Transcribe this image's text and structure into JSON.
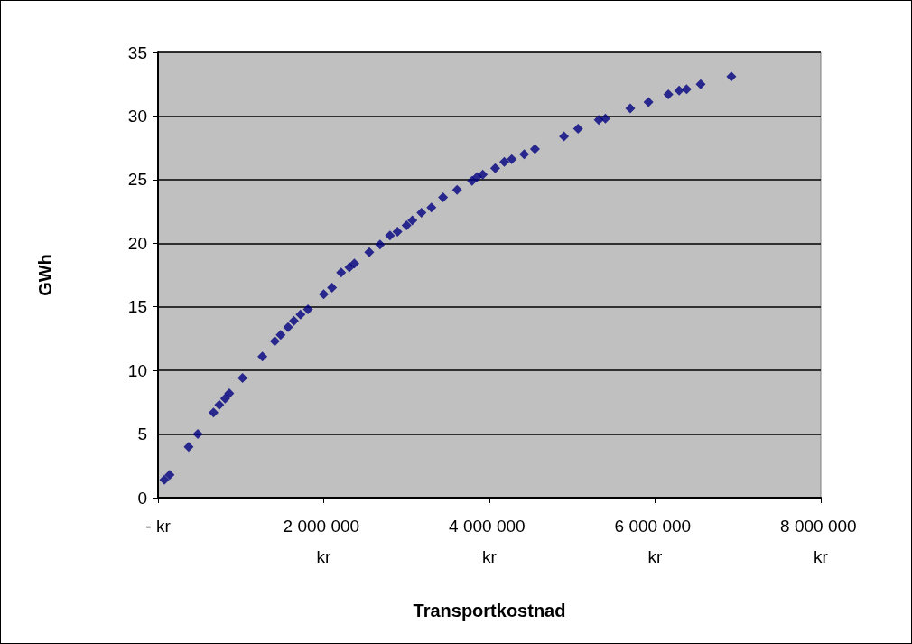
{
  "chart_data": {
    "type": "scatter",
    "xlabel": "Transportkostnad",
    "ylabel": "GWh",
    "marker": "diamond",
    "grid": "y",
    "xlim": [
      0,
      8000000
    ],
    "xticks": [
      {
        "value": 0,
        "label": "- kr"
      },
      {
        "value": 2000000,
        "label": "2 000 000 kr"
      },
      {
        "value": 4000000,
        "label": "4 000 000 kr"
      },
      {
        "value": 6000000,
        "label": "6 000 000 kr"
      },
      {
        "value": 8000000,
        "label": "8 000 000 kr"
      }
    ],
    "ylim": [
      0,
      35
    ],
    "yticks": [
      0,
      5,
      10,
      15,
      20,
      25,
      30,
      35
    ],
    "series": [
      {
        "color": "#000080",
        "x": [
          76000,
          140000,
          370000,
          480000,
          670000,
          740000,
          810000,
          860000,
          1020000,
          1260000,
          1410000,
          1480000,
          1570000,
          1640000,
          1720000,
          1810000,
          2000000,
          2100000,
          2210000,
          2310000,
          2370000,
          2550000,
          2680000,
          2800000,
          2890000,
          3000000,
          3070000,
          3180000,
          3300000,
          3440000,
          3610000,
          3790000,
          3850000,
          3920000,
          4070000,
          4180000,
          4270000,
          4420000,
          4550000,
          4900000,
          5070000,
          5320000,
          5400000,
          5700000,
          5920000,
          6160000,
          6290000,
          6380000,
          6550000,
          6920000
        ],
        "values": [
          1.4,
          1.8,
          4.0,
          5.0,
          6.7,
          7.3,
          7.8,
          8.2,
          9.4,
          11.1,
          12.3,
          12.8,
          13.4,
          13.9,
          14.4,
          14.8,
          16.0,
          16.5,
          17.7,
          18.1,
          18.4,
          19.3,
          19.9,
          20.6,
          20.9,
          21.4,
          21.8,
          22.4,
          22.8,
          23.6,
          24.2,
          24.9,
          25.2,
          25.4,
          25.9,
          26.4,
          26.6,
          27.0,
          27.4,
          28.4,
          29.0,
          29.7,
          29.8,
          30.6,
          31.1,
          31.7,
          32.0,
          32.1,
          32.5,
          33.1
        ]
      }
    ]
  }
}
